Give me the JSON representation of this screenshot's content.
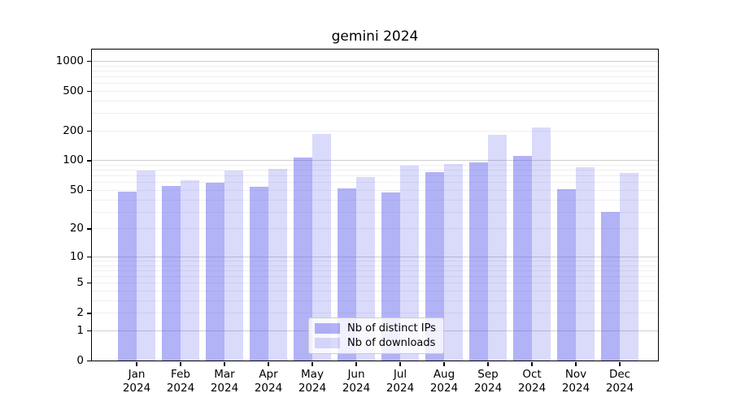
{
  "chart_data": {
    "type": "bar",
    "title": "gemini 2024",
    "categories": [
      "Jan 2024",
      "Feb 2024",
      "Mar 2024",
      "Apr 2024",
      "May 2024",
      "Jun 2024",
      "Jul 2024",
      "Aug 2024",
      "Sep 2024",
      "Oct 2024",
      "Nov 2024",
      "Dec 2024"
    ],
    "series": [
      {
        "name": "Nb of distinct IPs",
        "color": "#a9a9f8",
        "values": [
          49,
          56,
          60,
          54,
          107,
          52,
          48,
          76,
          97,
          113,
          51,
          30
        ]
      },
      {
        "name": "Nb of downloads",
        "color": "#dadafa",
        "values": [
          80,
          64,
          80,
          83,
          186,
          69,
          90,
          92,
          182,
          215,
          86,
          75
        ]
      }
    ],
    "y_scale": "log1p",
    "y_ticks": [
      0,
      1,
      2,
      5,
      10,
      20,
      50,
      100,
      200,
      500,
      1000
    ],
    "y_range": [
      0,
      1320
    ],
    "xlabel": "",
    "ylabel": "",
    "grid": "both-horizontal",
    "legend_position": "lower-center"
  },
  "colors": {
    "bar_base": "#5555ee",
    "grid_minor": "#efefef",
    "grid_major": "#cfcfcf",
    "frame": "#000000",
    "background": "#ffffff"
  }
}
